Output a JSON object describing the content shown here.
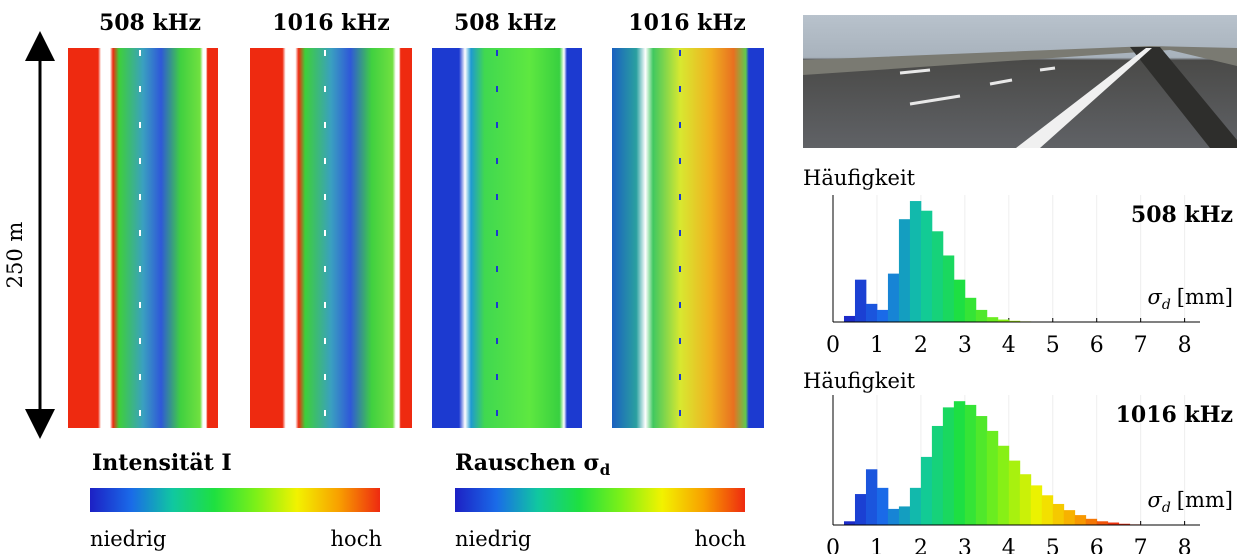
{
  "colormap": [
    "#1c20c4",
    "#1a6be8",
    "#10c8a0",
    "#1ee040",
    "#7cf018",
    "#f2f200",
    "#f8a000",
    "#ee2a10"
  ],
  "point_clouds": {
    "scale_label": "250 m",
    "panels": [
      {
        "title": "508 kHz"
      },
      {
        "title": "1016 kHz"
      },
      {
        "title": "508 kHz"
      },
      {
        "title": "1016 kHz"
      }
    ]
  },
  "legends": [
    {
      "title": "Intensität I",
      "low": "niedrig",
      "high": "hoch"
    },
    {
      "title": "Rauschen σ",
      "title_subscript": "d",
      "low": "niedrig",
      "high": "hoch"
    }
  ],
  "histograms": [
    {
      "ylabel": "Häufigkeit",
      "label": "508 kHz",
      "xlabel": {
        "symbol": "σ",
        "subscript": "d",
        "unit": "[mm]"
      },
      "xlim": [
        0,
        8.35
      ],
      "xticks": [
        0,
        1,
        2,
        3,
        4,
        5,
        6,
        7,
        8
      ],
      "ylim": [
        0,
        105
      ],
      "grid": true,
      "bins": [
        0.25,
        0.5,
        0.75,
        1,
        1.25,
        1.5,
        1.75,
        2,
        2.25,
        2.5,
        2.75,
        3,
        3.25,
        3.5,
        3.75,
        4,
        4.25,
        4.5,
        4.75,
        5,
        5.25,
        5.5,
        5.75,
        6,
        6.25,
        6.5,
        6.75,
        7,
        7.25,
        7.5,
        7.75,
        8
      ],
      "counts": [
        5,
        35,
        15,
        10,
        40,
        85,
        100,
        92,
        75,
        55,
        35,
        20,
        10,
        4,
        2,
        1,
        0.5,
        0,
        0,
        0,
        0,
        0,
        0,
        0,
        0,
        0,
        0,
        0,
        0,
        0,
        0
      ]
    },
    {
      "ylabel": "Häufigkeit",
      "label": "1016 kHz",
      "xlabel": {
        "symbol": "σ",
        "subscript": "d",
        "unit": "[mm]"
      },
      "xlim": [
        0,
        8.35
      ],
      "xticks": [
        0,
        1,
        2,
        3,
        4,
        5,
        6,
        7,
        8
      ],
      "ylim": [
        0,
        105
      ],
      "grid": true,
      "bins": [
        0.25,
        0.5,
        0.75,
        1,
        1.25,
        1.5,
        1.75,
        2,
        2.25,
        2.5,
        2.75,
        3,
        3.25,
        3.5,
        3.75,
        4,
        4.25,
        4.5,
        4.75,
        5,
        5.25,
        5.5,
        5.75,
        6,
        6.25,
        6.5,
        6.75,
        7,
        7.25,
        7.5,
        7.75,
        8
      ],
      "counts": [
        3,
        25,
        45,
        30,
        13,
        15,
        30,
        55,
        80,
        95,
        100,
        97,
        88,
        76,
        64,
        52,
        41,
        32,
        24,
        17,
        12,
        8,
        5,
        3,
        2,
        1,
        0.5,
        0.3,
        0.2,
        0.1,
        0
      ]
    }
  ]
}
